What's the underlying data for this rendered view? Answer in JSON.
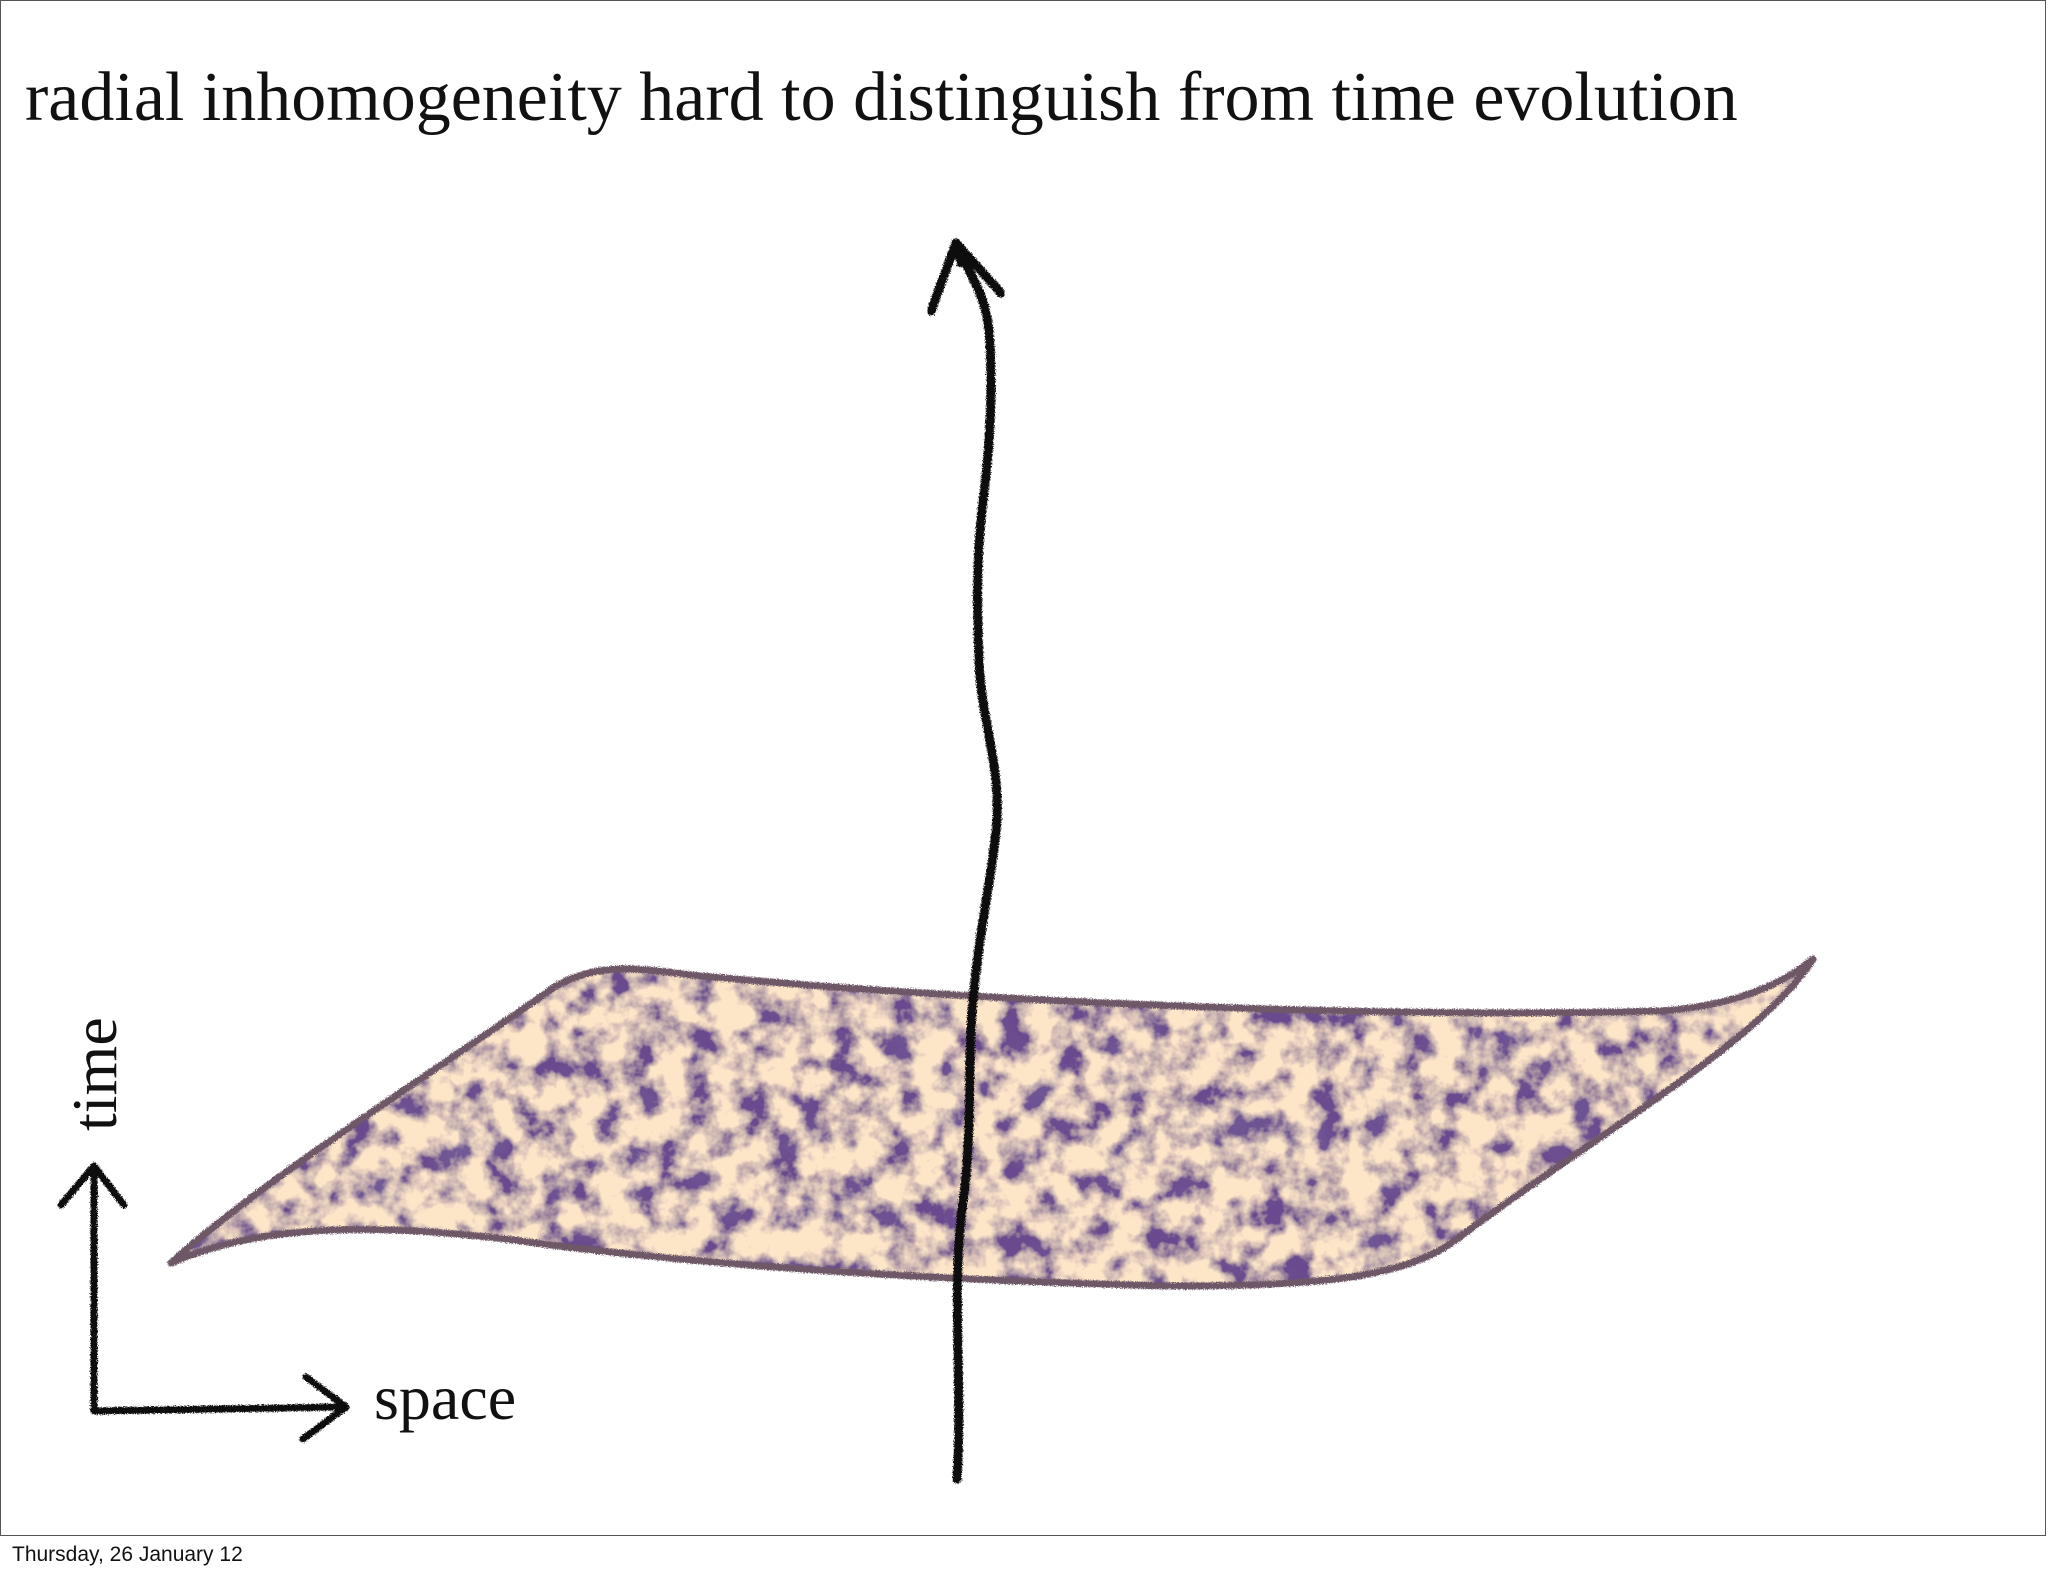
{
  "slide": {
    "title": "radial inhomogeneity hard to distinguish from time evolution"
  },
  "axes": {
    "vertical_label": "time",
    "horizontal_label": "space"
  },
  "footer": {
    "date": "Thursday, 26 January 12"
  },
  "colors": {
    "surface_fill": "#6b4a8e",
    "surface_edge": "#6e5868",
    "filament": "#f0b884",
    "arrow": "#111111"
  }
}
